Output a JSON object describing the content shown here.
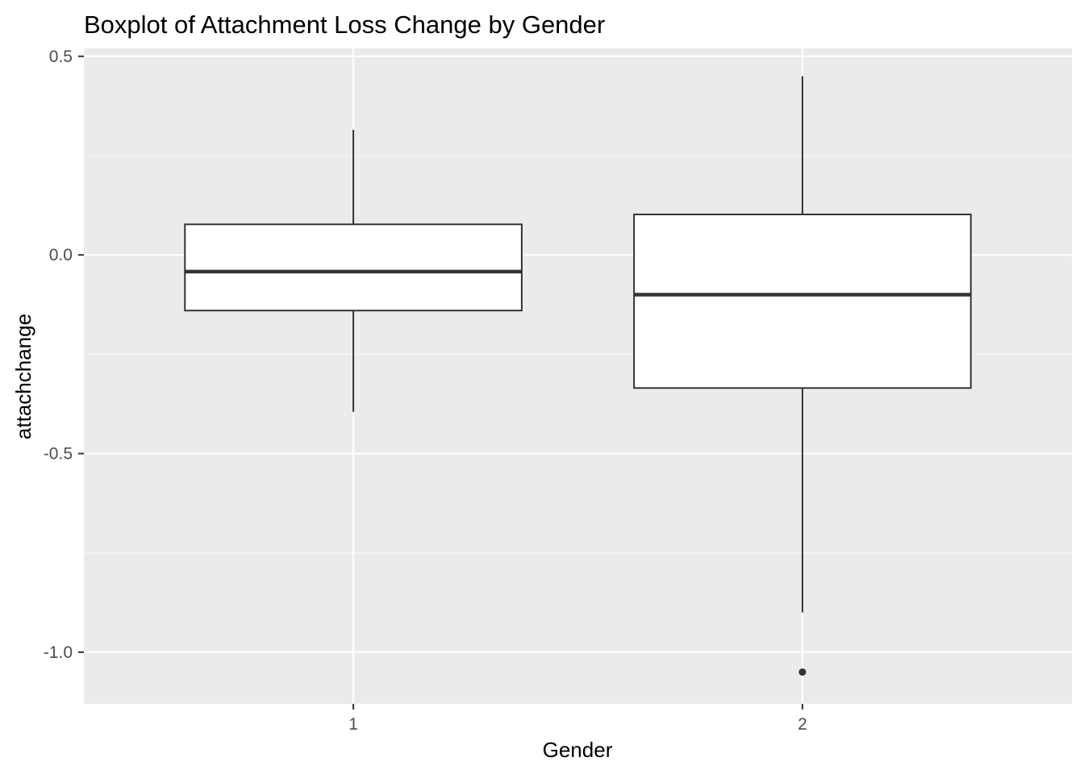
{
  "chart_data": {
    "type": "boxplot",
    "title": "Boxplot of Attachment Loss Change by Gender",
    "xlabel": "Gender",
    "ylabel": "attachchange",
    "categories": [
      "1",
      "2"
    ],
    "ylim": [
      -1.13,
      0.52
    ],
    "y_ticks": [
      {
        "value": 0.5,
        "label": "0.5"
      },
      {
        "value": 0.0,
        "label": "0.0"
      },
      {
        "value": -0.5,
        "label": "-0.5"
      },
      {
        "value": -1.0,
        "label": "-1.0"
      }
    ],
    "y_minor_ticks": [
      0.25,
      -0.25,
      -0.75
    ],
    "grid": true,
    "boxes": [
      {
        "category": "1",
        "whisker_low": -0.395,
        "q1": -0.14,
        "median": -0.042,
        "q3": 0.077,
        "whisker_high": 0.315,
        "outliers": []
      },
      {
        "category": "2",
        "whisker_low": -0.9,
        "q1": -0.335,
        "median": -0.1,
        "q3": 0.102,
        "whisker_high": 0.45,
        "outliers": [
          -1.05
        ]
      }
    ],
    "colors": {
      "panel_background": "#ebebeb",
      "grid_major": "#ffffff",
      "grid_minor": "#f7f7f7",
      "box_fill": "#ffffff",
      "box_line": "#333333",
      "tick_text": "#4d4d4d",
      "tick_mark": "#333333"
    }
  }
}
